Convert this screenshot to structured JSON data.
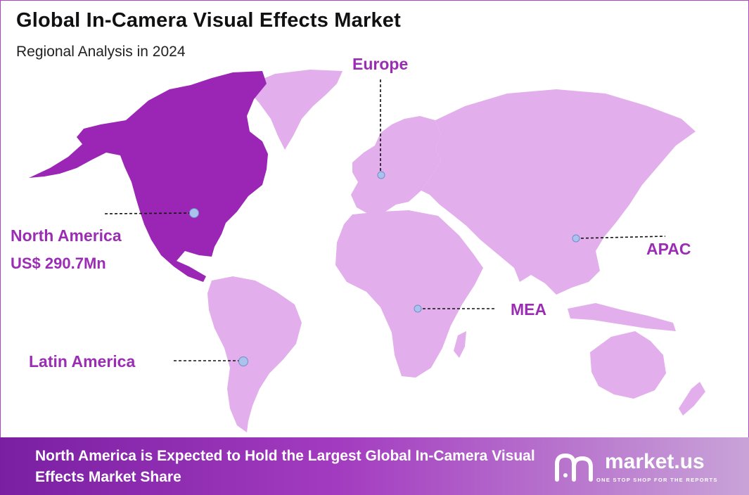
{
  "header": {
    "title": "Global In-Camera Visual Effects Market",
    "subtitle": "Regional Analysis in 2024"
  },
  "regions": {
    "north_america": {
      "name": "North America",
      "value": "US$ 290.7Mn"
    },
    "europe": {
      "name": "Europe"
    },
    "apac": {
      "name": "APAC"
    },
    "mea": {
      "name": "MEA"
    },
    "latin_america": {
      "name": "Latin America"
    }
  },
  "colors": {
    "highlight": "#9b26b6",
    "land": "#e2aeec",
    "label": "#9b2db5",
    "marker": "#a9c3ec"
  },
  "footer": {
    "text": "North America is Expected to Hold the Largest Global In-Camera Visual Effects Market Share"
  },
  "brand": {
    "logo_icon": "market-us-logo",
    "name": "market.us",
    "tagline": "ONE STOP SHOP FOR THE REPORTS"
  }
}
